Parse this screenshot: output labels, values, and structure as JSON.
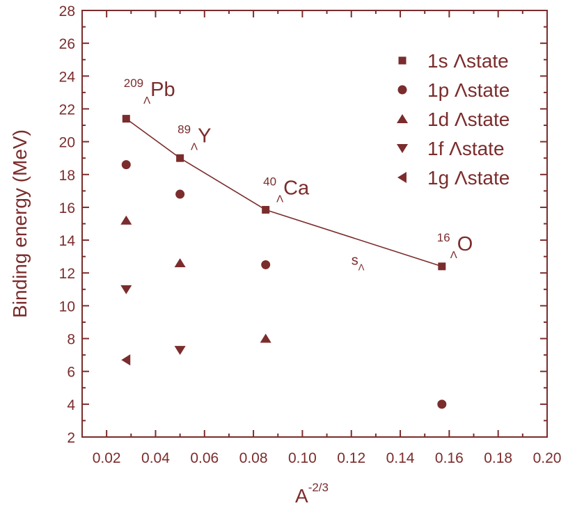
{
  "colors": {
    "main": "#7b2c2c",
    "background": "#ffffff"
  },
  "chart_data": {
    "type": "scatter",
    "title": "",
    "xlabel": {
      "base": "A",
      "sup": "-2/3"
    },
    "ylabel": "Binding energy (MeV)",
    "xlim": [
      0.01,
      0.2
    ],
    "ylim": [
      2,
      28
    ],
    "xticks": [
      0.02,
      0.04,
      0.06,
      0.08,
      0.1,
      0.12,
      0.14,
      0.16,
      0.18,
      0.2
    ],
    "xtick_labels": [
      "0.02",
      "0.04",
      "0.06",
      "0.08",
      "0.10",
      "0.12",
      "0.14",
      "0.16",
      "0.18",
      "0.20"
    ],
    "yticks": [
      2,
      4,
      6,
      8,
      10,
      12,
      14,
      16,
      18,
      20,
      22,
      24,
      26,
      28
    ],
    "ytick_labels": [
      "2",
      "4",
      "6",
      "8",
      "10",
      "12",
      "14",
      "16",
      "18",
      "20",
      "22",
      "24",
      "26",
      "28"
    ],
    "legend_position": "top-right",
    "series": [
      {
        "name": "1s Λstate",
        "marker": "square",
        "connected": true,
        "points": [
          [
            0.028,
            21.4
          ],
          [
            0.05,
            19.0
          ],
          [
            0.085,
            15.85
          ],
          [
            0.157,
            12.4
          ]
        ]
      },
      {
        "name": "1p Λstate",
        "marker": "circle",
        "connected": false,
        "points": [
          [
            0.028,
            18.6
          ],
          [
            0.05,
            16.8
          ],
          [
            0.085,
            12.5
          ],
          [
            0.157,
            4.0
          ]
        ]
      },
      {
        "name": "1d Λstate",
        "marker": "triangle-up",
        "connected": false,
        "points": [
          [
            0.028,
            15.2
          ],
          [
            0.05,
            12.6
          ],
          [
            0.085,
            8.0
          ]
        ]
      },
      {
        "name": "1f Λstate",
        "marker": "triangle-down",
        "connected": false,
        "points": [
          [
            0.028,
            11.0
          ],
          [
            0.05,
            7.3
          ]
        ]
      },
      {
        "name": "1g Λstate",
        "marker": "triangle-left",
        "connected": false,
        "points": [
          [
            0.028,
            6.7
          ]
        ]
      }
    ],
    "annotations": [
      {
        "sup": "209",
        "sub": "Λ",
        "main": "Pb",
        "x": 0.027,
        "y": 22.9
      },
      {
        "sup": "89",
        "sub": "Λ",
        "main": "Y",
        "x": 0.049,
        "y": 20.1
      },
      {
        "sup": "40",
        "sub": "Λ",
        "main": "Ca",
        "x": 0.084,
        "y": 16.9
      },
      {
        "sup": "16",
        "sub": "Λ",
        "main": "O",
        "x": 0.155,
        "y": 13.5
      },
      {
        "sup": "",
        "sub": "Λ",
        "main": "s",
        "x": 0.12,
        "y": 12.5
      }
    ]
  }
}
